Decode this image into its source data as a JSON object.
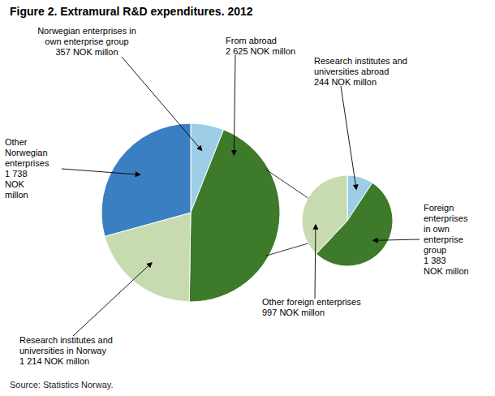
{
  "chart_data": [
    {
      "type": "pie",
      "title": "Figure 2. Extramural R&D expenditures. 2012",
      "annotations": [
        "Source: Statistics Norway."
      ],
      "categories": [
        "Norwegian enterprises in\nown enterprise group",
        "From abroad",
        "Research institutes and\nuniversities in Norway",
        "Other\nNorwegian\nenterprises"
      ],
      "values": [
        357,
        2625,
        1214,
        1738
      ],
      "value_labels": [
        "357 NOK millon",
        "2 625 NOK millon",
        "1 214 NOK millon",
        "1 738\nNOK\nmillon"
      ],
      "colors": [
        "#9ecde8",
        "#3d7a2a",
        "#c8dbb0",
        "#3a7fc1"
      ]
    },
    {
      "type": "pie",
      "categories": [
        "Research institutes and\nuniversities abroad",
        "Foreign\nenterprises\nin own\nenterprise\ngroup",
        "Other foreign enterprises"
      ],
      "values": [
        244,
        1383,
        997
      ],
      "value_labels": [
        "244 NOK millon",
        "1 383\nNOK millon",
        "997 NOK millon"
      ],
      "colors": [
        "#9ecde8",
        "#3d7a2a",
        "#c8dbb0"
      ]
    }
  ]
}
